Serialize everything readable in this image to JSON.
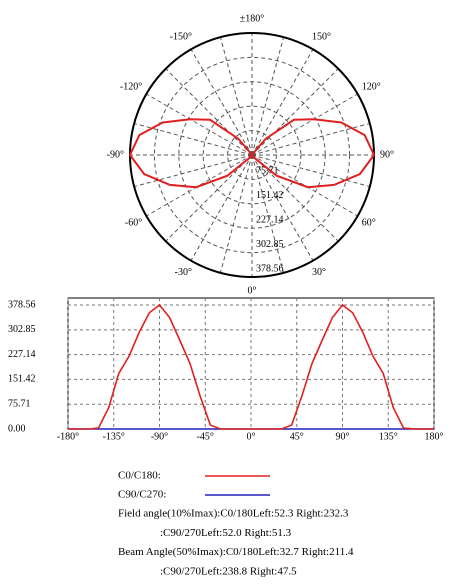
{
  "chart_data": [
    {
      "type": "polar",
      "angles": [
        -180,
        -170,
        -160,
        -150,
        -140,
        -130,
        -120,
        -110,
        -100,
        -90,
        -80,
        -70,
        -60,
        -50,
        -40,
        -30,
        -20,
        -10,
        0,
        10,
        20,
        30,
        40,
        50,
        60,
        70,
        80,
        90,
        100,
        110,
        120,
        130,
        140,
        150,
        160,
        170,
        180
      ],
      "series": [
        {
          "name": "C0/C180:",
          "color": "#e02020",
          "values": [
            0,
            0,
            0,
            3,
            65,
            170,
            222,
            295,
            355,
            378.56,
            340,
            271,
            200,
            100,
            12,
            0,
            0,
            0,
            0,
            0,
            0,
            0,
            12,
            100,
            200,
            271,
            340,
            378.56,
            355,
            295,
            222,
            170,
            65,
            3,
            0,
            0,
            0
          ]
        },
        {
          "name": "C90/C270:",
          "color": "#2020c0",
          "values": [
            0,
            0,
            0,
            0,
            0,
            0,
            0,
            0,
            0,
            0,
            0,
            0,
            0,
            0,
            0,
            0,
            0,
            0,
            0,
            0,
            0,
            0,
            0,
            0,
            0,
            0,
            0,
            0,
            0,
            0,
            0,
            0,
            0,
            0,
            0,
            0,
            0
          ]
        }
      ],
      "rlim": [
        0,
        378.56
      ],
      "rticks": [
        75.71,
        151.42,
        227.14,
        302.85,
        378.56
      ],
      "angle_ticks": [
        {
          "value": 180,
          "label": "±180°"
        },
        {
          "value": -150,
          "label": "-150°"
        },
        {
          "value": 150,
          "label": "150°"
        },
        {
          "value": -120,
          "label": "-120°"
        },
        {
          "value": 120,
          "label": "120°"
        },
        {
          "value": -90,
          "label": "-90°"
        },
        {
          "value": 90,
          "label": "90°"
        },
        {
          "value": -60,
          "label": "-60°"
        },
        {
          "value": 60,
          "label": "60°"
        },
        {
          "value": -30,
          "label": "-30°"
        },
        {
          "value": 30,
          "label": "30°"
        },
        {
          "value": 0,
          "label": "0°"
        }
      ]
    },
    {
      "type": "line",
      "x": [
        -180,
        -170,
        -160,
        -150,
        -140,
        -130,
        -120,
        -110,
        -100,
        -90,
        -80,
        -70,
        -60,
        -50,
        -40,
        -30,
        -20,
        -10,
        0,
        10,
        20,
        30,
        40,
        50,
        60,
        70,
        80,
        90,
        100,
        110,
        120,
        130,
        140,
        150,
        160,
        170,
        180
      ],
      "series": [
        {
          "name": "C0/C180:",
          "color": "#e02020",
          "values": [
            0,
            0,
            0,
            3,
            65,
            170,
            222,
            295,
            355,
            378.56,
            340,
            271,
            200,
            100,
            12,
            0,
            0,
            0,
            0,
            0,
            0,
            0,
            12,
            100,
            200,
            271,
            340,
            378.56,
            355,
            295,
            222,
            170,
            65,
            3,
            0,
            0,
            0
          ]
        },
        {
          "name": "C90/C270:",
          "color": "#2020c0",
          "values": [
            0,
            0,
            0,
            0,
            0,
            0,
            0,
            0,
            0,
            0,
            0,
            0,
            0,
            0,
            0,
            0,
            0,
            0,
            0,
            0,
            0,
            0,
            0,
            0,
            0,
            0,
            0,
            0,
            0,
            0,
            0,
            0,
            0,
            0,
            0,
            0,
            0
          ]
        }
      ],
      "xlim": [
        -180,
        180
      ],
      "ylim": [
        0,
        400
      ],
      "xticks": [
        {
          "value": -180,
          "label": "-180°"
        },
        {
          "value": -135,
          "label": "-135°"
        },
        {
          "value": -90,
          "label": "-90°"
        },
        {
          "value": -45,
          "label": "-45°"
        },
        {
          "value": 0,
          "label": "0°"
        },
        {
          "value": 45,
          "label": "45°"
        },
        {
          "value": 90,
          "label": "90°"
        },
        {
          "value": 135,
          "label": "135°"
        },
        {
          "value": 180,
          "label": "180°"
        }
      ],
      "yticks": [
        {
          "value": 0,
          "label": "0.00"
        },
        75.71,
        151.42,
        227.14,
        302.85,
        378.56
      ],
      "grid": true,
      "annotations": [
        "Field angle(10%Imax):C0/180Left:52.3 Right:232.3",
        ":C90/270Left:52.0 Right:51.3",
        "Beam Angle(50%Imax):C0/180Left:32.7 Right:211.4",
        ":C90/270Left:238.8 Right:47.5"
      ]
    }
  ]
}
